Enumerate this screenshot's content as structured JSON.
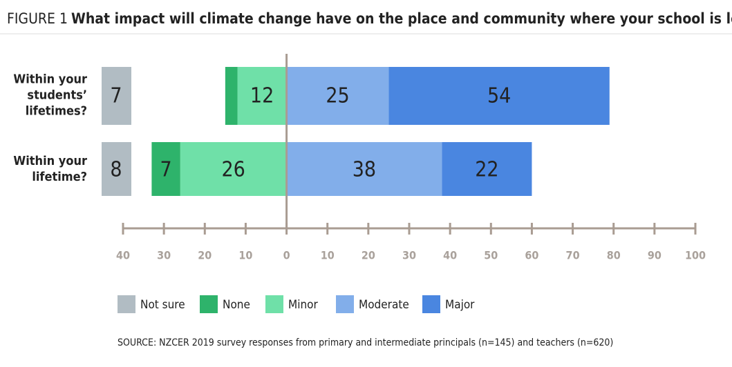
{
  "chart_data": {
    "type": "diverging-bar",
    "figure_label": "FIGURE 1",
    "title": "What impact will climate change have on the place and community where your school is located?",
    "categories": [
      "Within your students’ lifetimes?",
      "Within your lifetime?"
    ],
    "series": [
      {
        "name": "Not sure",
        "color": "#b1bcc3",
        "values": [
          7,
          8
        ]
      },
      {
        "name": "None",
        "color": "#2eb36b",
        "values": [
          3,
          7
        ]
      },
      {
        "name": "Minor",
        "color": "#6fe0a8",
        "values": [
          12,
          26
        ]
      },
      {
        "name": "Moderate",
        "color": "#82aeea",
        "values": [
          25,
          38
        ]
      },
      {
        "name": "Major",
        "color": "#4a86e0",
        "values": [
          54,
          22
        ]
      }
    ],
    "xlim": [
      -40,
      100
    ],
    "xticks": [
      {
        "value": -40,
        "label": "40"
      },
      {
        "value": -30,
        "label": "30"
      },
      {
        "value": -20,
        "label": "20"
      },
      {
        "value": -10,
        "label": "10"
      },
      0,
      10,
      20,
      30,
      40,
      50,
      60,
      70,
      80,
      90,
      100
    ],
    "source": "SOURCE: NZCER 2019 survey responses from primary and intermediate principals (n=145) and teachers (n=620)"
  }
}
